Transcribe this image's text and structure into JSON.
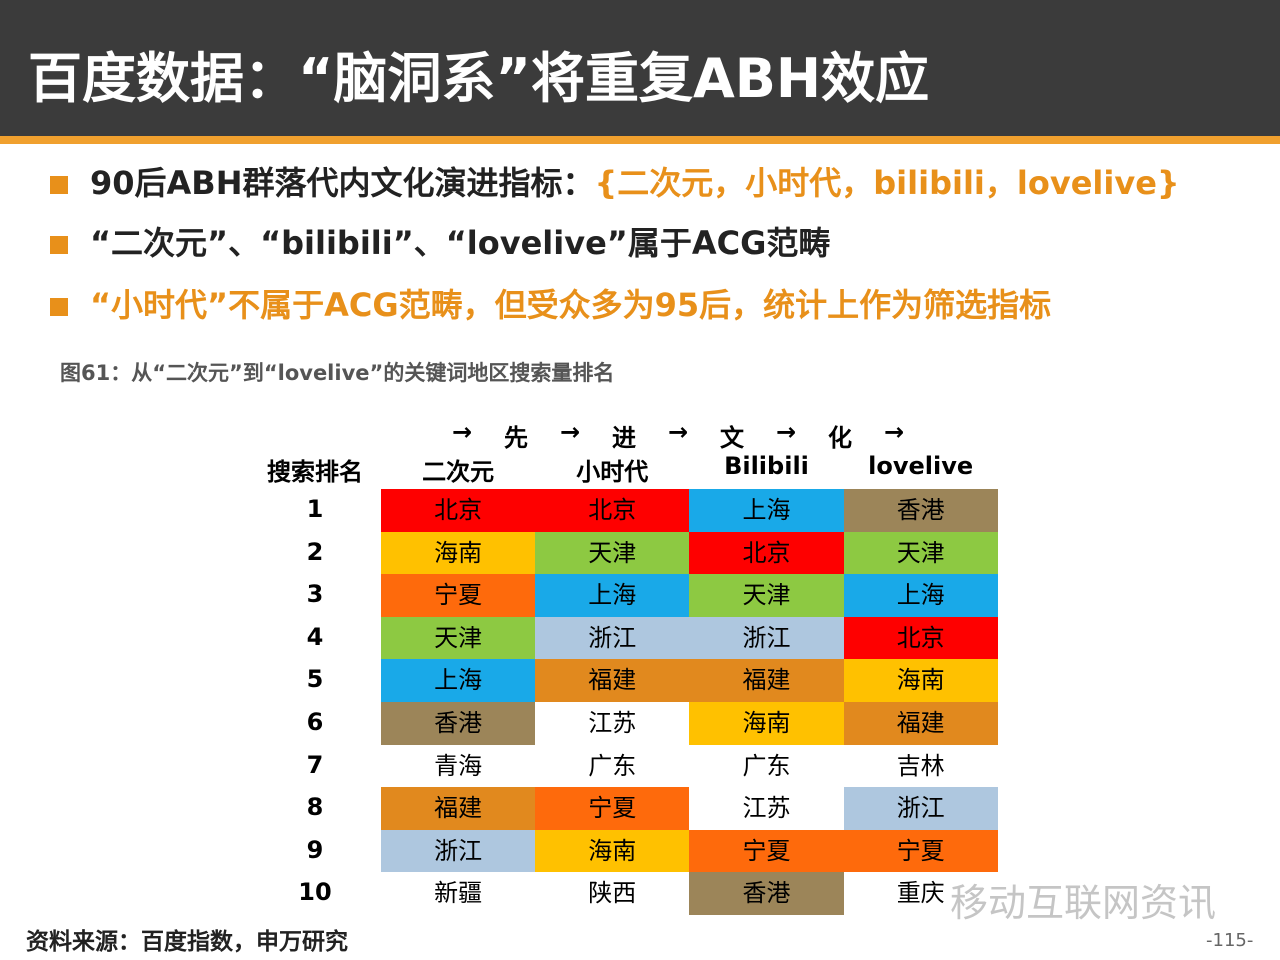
{
  "header": {
    "title": "百度数据：“脑洞系”将重复ABH效应"
  },
  "bullets": [
    {
      "parts": [
        "90后ABH群落代内文化演进指标：",
        "{二次元，小时代，bilibili，lovelive}"
      ]
    },
    {
      "parts": [
        "“二次元”、“bilibili”、“lovelive”属于ACG范畴"
      ]
    },
    {
      "parts": [
        "“小时代”不属于ACG范畴，但受众多为95后，统计上作为筛选指标"
      ]
    }
  ],
  "figure": {
    "caption": "图61：从“二次元”到“lovelive”的关键词地区搜索量排名"
  },
  "table": {
    "arrow_row": [
      "→",
      "先",
      "→",
      "进",
      "→",
      "文",
      "→",
      "化",
      "→"
    ],
    "rank_header": "搜索排名",
    "columns": [
      "二次元",
      "小时代",
      "Bilibili",
      "lovelive"
    ],
    "ranks": [
      "1",
      "2",
      "3",
      "4",
      "5",
      "6",
      "7",
      "8",
      "9",
      "10"
    ],
    "rows": [
      [
        {
          "text": "北京",
          "color": "#fe0000"
        },
        {
          "text": "北京",
          "color": "#fe0000"
        },
        {
          "text": "上海",
          "color": "#19a9e8"
        },
        {
          "text": "香港",
          "color": "#9c8559"
        }
      ],
      [
        {
          "text": "海南",
          "color": "#ffc100"
        },
        {
          "text": "天津",
          "color": "#8dc942"
        },
        {
          "text": "北京",
          "color": "#fe0000"
        },
        {
          "text": "天津",
          "color": "#8dc942"
        }
      ],
      [
        {
          "text": "宁夏",
          "color": "#fe6a0c"
        },
        {
          "text": "上海",
          "color": "#19a9e8"
        },
        {
          "text": "天津",
          "color": "#8dc942"
        },
        {
          "text": "上海",
          "color": "#19a9e8"
        }
      ],
      [
        {
          "text": "天津",
          "color": "#8dc942"
        },
        {
          "text": "浙江",
          "color": "#aec7df"
        },
        {
          "text": "浙江",
          "color": "#aec7df"
        },
        {
          "text": "北京",
          "color": "#fe0000"
        }
      ],
      [
        {
          "text": "上海",
          "color": "#19a9e8"
        },
        {
          "text": "福建",
          "color": "#e1891e"
        },
        {
          "text": "福建",
          "color": "#e1891e"
        },
        {
          "text": "海南",
          "color": "#ffc100"
        }
      ],
      [
        {
          "text": "香港",
          "color": "#9c8559"
        },
        {
          "text": "江苏",
          "color": "#ffffff"
        },
        {
          "text": "海南",
          "color": "#ffc100"
        },
        {
          "text": "福建",
          "color": "#e1891e"
        }
      ],
      [
        {
          "text": "青海",
          "color": "#ffffff"
        },
        {
          "text": "广东",
          "color": "#ffffff"
        },
        {
          "text": "广东",
          "color": "#ffffff"
        },
        {
          "text": "吉林",
          "color": "#ffffff"
        }
      ],
      [
        {
          "text": "福建",
          "color": "#e1891e"
        },
        {
          "text": "宁夏",
          "color": "#fe6a0c"
        },
        {
          "text": "江苏",
          "color": "#ffffff"
        },
        {
          "text": "浙江",
          "color": "#aec7df"
        }
      ],
      [
        {
          "text": "浙江",
          "color": "#aec7df"
        },
        {
          "text": "海南",
          "color": "#ffc100"
        },
        {
          "text": "宁夏",
          "color": "#fe6a0c"
        },
        {
          "text": "宁夏",
          "color": "#fe6a0c"
        }
      ],
      [
        {
          "text": "新疆",
          "color": "#ffffff"
        },
        {
          "text": "陕西",
          "color": "#ffffff"
        },
        {
          "text": "香港",
          "color": "#9c8559"
        },
        {
          "text": "重庆",
          "color": "#ffffff"
        }
      ]
    ]
  },
  "footer": {
    "source": "资料来源：百度指数，申万研究",
    "page": "-115-",
    "watermark": "移动互联网资讯"
  }
}
